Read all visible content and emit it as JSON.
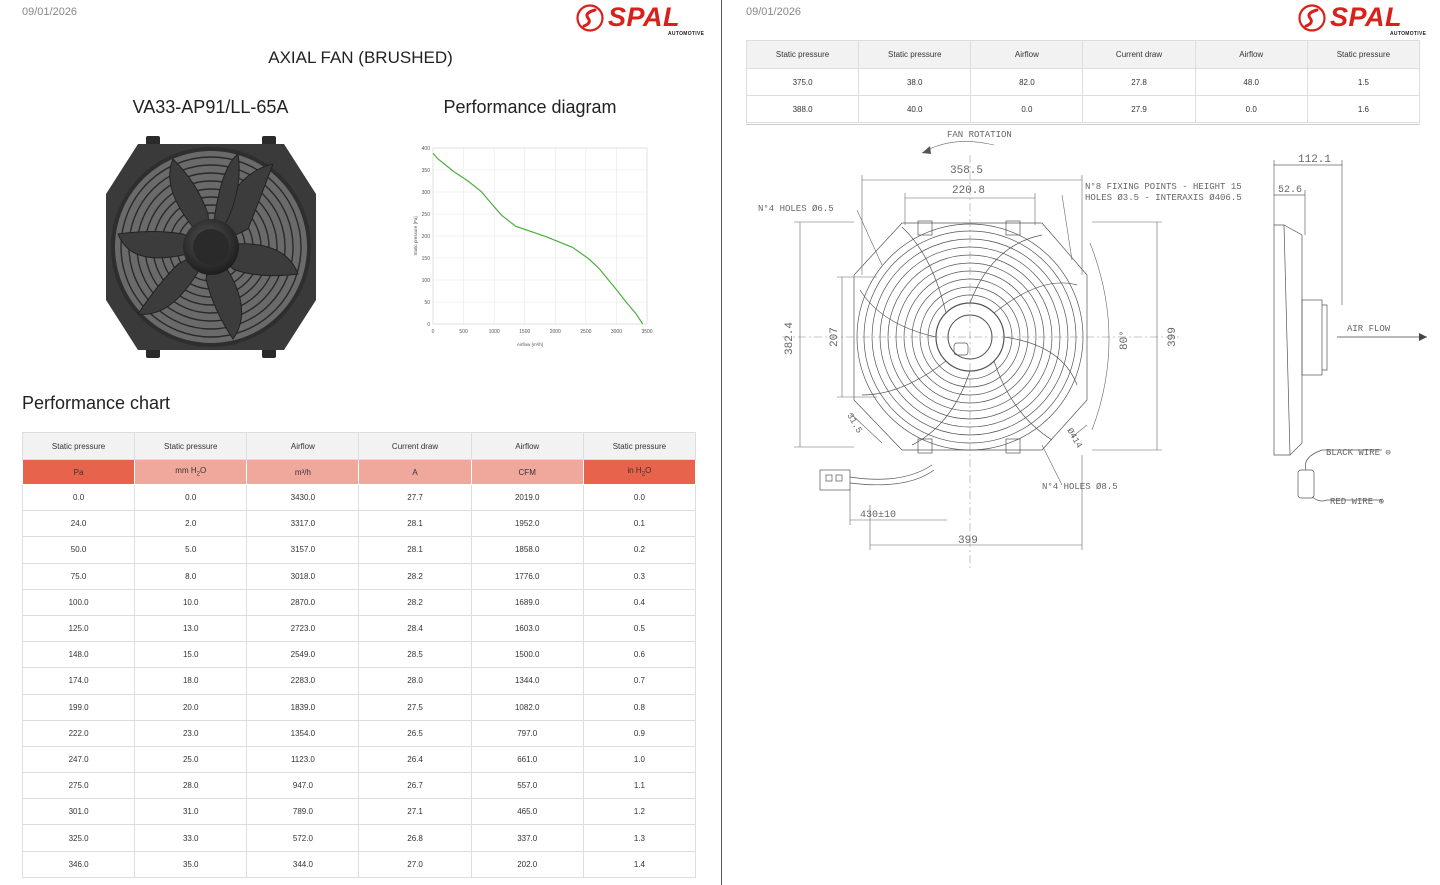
{
  "left": {
    "date": "09/01/2026",
    "logo": {
      "name": "SPAL",
      "sub": "AUTOMOTIVE"
    },
    "title": "AXIAL FAN (BRUSHED)",
    "model": "VA33-AP91/LL-65A",
    "diagram_title": "Performance diagram",
    "section_title": "Performance chart",
    "table": {
      "headers": [
        "Static pressure",
        "Static pressure",
        "Airflow",
        "Current draw",
        "Airflow",
        "Static pressure"
      ],
      "units": [
        {
          "main": "Pa",
          "sub": ""
        },
        {
          "main": "mm H",
          "sub": "2",
          "tail": "O"
        },
        {
          "main": "m³/h",
          "sub": ""
        },
        {
          "main": "A",
          "sub": ""
        },
        {
          "main": "CFM",
          "sub": ""
        },
        {
          "main": "in H",
          "sub": "2",
          "tail": "O"
        }
      ],
      "unit_colors": [
        "#e8634b",
        "#f1a89c",
        "#f1a89c",
        "#f1a89c",
        "#f1a89c",
        "#e8634b"
      ],
      "rows": [
        [
          "0.0",
          "0.0",
          "3430.0",
          "27.7",
          "2019.0",
          "0.0"
        ],
        [
          "24.0",
          "2.0",
          "3317.0",
          "28.1",
          "1952.0",
          "0.1"
        ],
        [
          "50.0",
          "5.0",
          "3157.0",
          "28.1",
          "1858.0",
          "0.2"
        ],
        [
          "75.0",
          "8.0",
          "3018.0",
          "28.2",
          "1776.0",
          "0.3"
        ],
        [
          "100.0",
          "10.0",
          "2870.0",
          "28.2",
          "1689.0",
          "0.4"
        ],
        [
          "125.0",
          "13.0",
          "2723.0",
          "28.4",
          "1603.0",
          "0.5"
        ],
        [
          "148.0",
          "15.0",
          "2549.0",
          "28.5",
          "1500.0",
          "0.6"
        ],
        [
          "174.0",
          "18.0",
          "2283.0",
          "28.0",
          "1344.0",
          "0.7"
        ],
        [
          "199.0",
          "20.0",
          "1839.0",
          "27.5",
          "1082.0",
          "0.8"
        ],
        [
          "222.0",
          "23.0",
          "1354.0",
          "26.5",
          "797.0",
          "0.9"
        ],
        [
          "247.0",
          "25.0",
          "1123.0",
          "26.4",
          "661.0",
          "1.0"
        ],
        [
          "275.0",
          "28.0",
          "947.0",
          "26.7",
          "557.0",
          "1.1"
        ],
        [
          "301.0",
          "31.0",
          "789.0",
          "27.1",
          "465.0",
          "1.2"
        ],
        [
          "325.0",
          "33.0",
          "572.0",
          "26.8",
          "337.0",
          "1.3"
        ],
        [
          "346.0",
          "35.0",
          "344.0",
          "27.0",
          "202.0",
          "1.4"
        ]
      ]
    }
  },
  "right": {
    "date": "09/01/2026",
    "logo": {
      "name": "SPAL",
      "sub": "AUTOMOTIVE"
    },
    "table": {
      "headers": [
        "Static pressure",
        "Static pressure",
        "Airflow",
        "Current draw",
        "Airflow",
        "Static pressure"
      ],
      "rows": [
        [
          "375.0",
          "38.0",
          "82.0",
          "27.8",
          "48.0",
          "1.5"
        ],
        [
          "388.0",
          "40.0",
          "0.0",
          "27.9",
          "0.0",
          "1.6"
        ]
      ]
    },
    "drawing": {
      "fan_rotation": "FAN ROTATION",
      "dim_358": "358.5",
      "dim_220": "220.8",
      "holes_65": "N°4 HOLES Ø6.5",
      "fixing_1": "N°8 FIXING POINTS - HEIGHT 15",
      "fixing_2": "HOLES Ø3.5 - INTERAXIS Ø406.5",
      "dim_382": "382.4",
      "dim_207": "207",
      "dim_80": "80°",
      "dim_399v": "399",
      "dim_315": "31.5",
      "dim_414": "Ø414",
      "holes_85": "N°4 HOLES Ø8.5",
      "dim_430": "430±10",
      "dim_399h": "399",
      "dim_112": "112.1",
      "dim_526": "52.6",
      "air_flow": "AIR FLOW",
      "black_wire": "BLACK WIRE ⊖",
      "red_wire": "RED WIRE ⊕"
    }
  },
  "chart_data": {
    "type": "line",
    "title": "Performance diagram",
    "xlabel": "Airflow [m³/h]",
    "ylabel": "Static pressure [Pa]",
    "xlim": [
      0,
      3500
    ],
    "ylim": [
      0,
      400
    ],
    "xticks": [
      0,
      500,
      1000,
      1500,
      2000,
      2500,
      3000,
      3500
    ],
    "yticks": [
      0,
      50,
      100,
      150,
      200,
      250,
      300,
      350,
      400
    ],
    "grid": true,
    "line_color": "#4caf3c",
    "series": [
      {
        "x": [
          3430,
          3317,
          3157,
          3018,
          2870,
          2723,
          2549,
          2283,
          1839,
          1354,
          1123,
          947,
          789,
          572,
          344,
          82,
          0
        ],
        "y": [
          0,
          24,
          50,
          75,
          100,
          125,
          148,
          174,
          199,
          222,
          247,
          275,
          301,
          325,
          346,
          375,
          388
        ]
      }
    ]
  }
}
